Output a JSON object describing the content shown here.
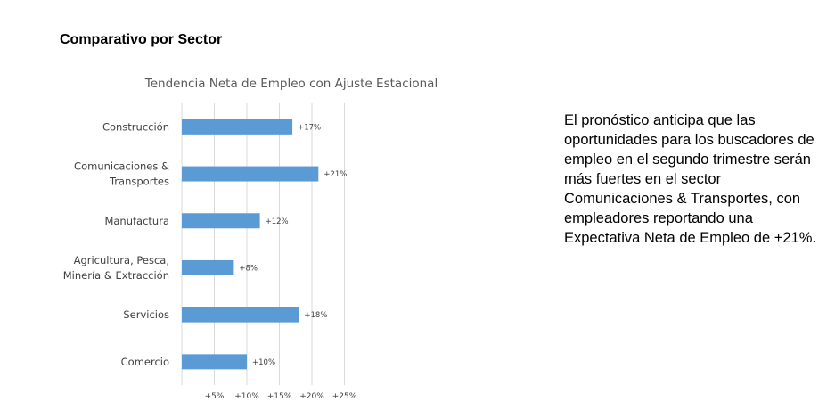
{
  "section_heading": "Comparativo por Sector",
  "description": "El pronóstico anticipa que las oportunidades para los buscadores de empleo en el segundo trimestre serán más fuertes en el sector Comunicaciones & Transportes, con empleadores reportando una Expectativa Neta de Empleo de +21%.",
  "colors": {
    "bar": "#5B9BD5",
    "grid": "#d9d9d9",
    "label": "#404040",
    "title": "#595959"
  },
  "chart_data": {
    "type": "bar",
    "orientation": "horizontal",
    "title": "Tendencia Neta de Empleo con Ajuste Estacional",
    "xlabel": "",
    "ylabel": "",
    "categories": [
      [
        "Construcción"
      ],
      [
        "Comunicaciones &",
        "Transportes"
      ],
      [
        "Manufactura"
      ],
      [
        "Agricultura, Pesca,",
        "Minería & Extracción"
      ],
      [
        "Servicios"
      ],
      [
        "Comercio"
      ]
    ],
    "values": [
      17,
      21,
      12,
      8,
      18,
      10
    ],
    "data_labels": [
      "+17%",
      "+21%",
      "+12%",
      "+8%",
      "+18%",
      "+10%"
    ],
    "x_ticks": [
      5,
      10,
      15,
      20,
      25
    ],
    "x_tick_labels": [
      "+5%",
      "+10%",
      "+15%",
      "+20%",
      "+25%"
    ],
    "xlim": [
      0,
      25
    ],
    "grid": true,
    "legend": "none"
  }
}
